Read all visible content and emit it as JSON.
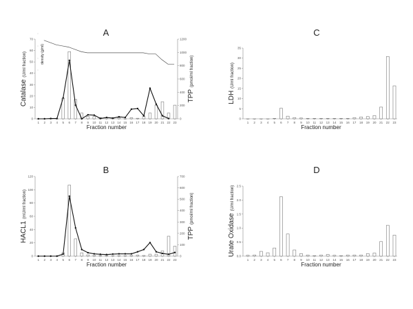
{
  "chart_data": [
    {
      "panel": "A",
      "type": "bar+line",
      "title": "A",
      "xlabel": "Fraction number",
      "ylabel": "Catalase",
      "ylabel_unit": "(U/ml fraction)",
      "y2label": "TPP",
      "y2label_unit": "(pmol/ml fraction)",
      "inner_label": "density (g/ml)",
      "categories": [
        "1",
        "2",
        "3",
        "4",
        "5",
        "6",
        "7",
        "8",
        "9",
        "10",
        "11",
        "12",
        "13",
        "14",
        "15",
        "16",
        "17",
        "18",
        "19",
        "20",
        "21",
        "22",
        "23"
      ],
      "ylim": [
        0,
        70
      ],
      "yticks": [
        0,
        10,
        20,
        30,
        40,
        50,
        60,
        70
      ],
      "y2lim": [
        0,
        1200
      ],
      "y2ticks": [
        0,
        200,
        400,
        600,
        800,
        1000,
        1200
      ],
      "series": [
        {
          "name": "Catalase",
          "kind": "bar",
          "axis": "left",
          "values": [
            0,
            0,
            0,
            0,
            18,
            59,
            17,
            5,
            2,
            2,
            1,
            1,
            1,
            1,
            0,
            1,
            0.5,
            2,
            5,
            12,
            15,
            5,
            12
          ]
        },
        {
          "name": "TPP",
          "kind": "line-marker",
          "axis": "right",
          "values": [
            0,
            0,
            5,
            5,
            315,
            880,
            205,
            0,
            60,
            55,
            5,
            20,
            10,
            30,
            20,
            145,
            155,
            45,
            460,
            220,
            45,
            5,
            null
          ]
        },
        {
          "name": "density",
          "kind": "line",
          "axis": "left",
          "values": [
            69,
            67,
            65,
            64,
            63,
            61,
            59,
            58,
            58,
            58,
            58,
            58,
            58,
            58,
            58,
            58,
            58,
            57,
            57,
            52,
            48,
            48,
            null
          ]
        }
      ]
    },
    {
      "panel": "B",
      "type": "bar+line",
      "title": "B",
      "xlabel": "Fraction number",
      "ylabel": "HACL1",
      "ylabel_unit": "(mU/ml fraction)",
      "y2label": "TPP",
      "y2label_unit": "(pmol/ml fraction)",
      "categories": [
        "1",
        "2",
        "3",
        "4",
        "5",
        "6",
        "7",
        "8",
        "9",
        "10",
        "11",
        "12",
        "13",
        "14",
        "15",
        "16",
        "17",
        "18",
        "19",
        "20",
        "21",
        "22",
        "23"
      ],
      "ylim": [
        0,
        120
      ],
      "yticks": [
        0,
        20,
        40,
        60,
        80,
        100,
        120
      ],
      "y2lim": [
        0,
        700
      ],
      "y2ticks": [
        0,
        100,
        200,
        300,
        400,
        500,
        600,
        700
      ],
      "series": [
        {
          "name": "HACL1",
          "kind": "bar",
          "axis": "left",
          "values": [
            0,
            0,
            0,
            0,
            5,
            107,
            26,
            5,
            2,
            1,
            1,
            1,
            0.5,
            0.5,
            0.5,
            1,
            1.5,
            1,
            3,
            3,
            8,
            30,
            15
          ]
        },
        {
          "name": "TPP",
          "kind": "line-marker",
          "axis": "right",
          "values": [
            0,
            0,
            0,
            0,
            18,
            527,
            248,
            58,
            30,
            20,
            16,
            14,
            18,
            20,
            20,
            20,
            38,
            58,
            119,
            38,
            24,
            16,
            32
          ]
        }
      ]
    },
    {
      "panel": "C",
      "type": "bar",
      "title": "C",
      "xlabel": "Fraction number",
      "ylabel": "LDH",
      "ylabel_unit": "(U/ml fraction)",
      "categories": [
        "1",
        "2",
        "3",
        "4",
        "5",
        "6",
        "7",
        "8",
        "9",
        "10",
        "11",
        "12",
        "13",
        "14",
        "15",
        "16",
        "17",
        "18",
        "19",
        "20",
        "21",
        "22",
        "23"
      ],
      "ylim": [
        0,
        35
      ],
      "yticks": [
        0,
        5,
        10,
        15,
        20,
        25,
        30,
        35
      ],
      "series": [
        {
          "name": "LDH",
          "kind": "bar",
          "axis": "left",
          "values": [
            0,
            0,
            0,
            0,
            0.2,
            5.2,
            1.3,
            0.6,
            0.4,
            0.2,
            0.2,
            0.2,
            0.2,
            0.2,
            0.2,
            0.2,
            0.6,
            0.9,
            1.1,
            1.6,
            5.8,
            30.8,
            16.3
          ]
        }
      ]
    },
    {
      "panel": "D",
      "type": "bar",
      "title": "D",
      "xlabel": "Fraction number",
      "ylabel": "Urate Oxidase",
      "ylabel_unit": "(U/ml fraction)",
      "categories": [
        "1",
        "2",
        "3",
        "4",
        "5",
        "6",
        "7",
        "8",
        "9",
        "10",
        "11",
        "12",
        "13",
        "14",
        "15",
        "16",
        "17",
        "18",
        "19",
        "20",
        "21",
        "22",
        "23"
      ],
      "ylim": [
        0,
        2.5
      ],
      "yticks": [
        "0.0",
        "0.5",
        "1.0",
        "1.5",
        "2.0",
        "2.5"
      ],
      "series": [
        {
          "name": "Urate Oxidase",
          "kind": "bar",
          "axis": "left",
          "values": [
            0.03,
            0.04,
            0.17,
            0.12,
            0.29,
            2.12,
            0.79,
            0.22,
            0.09,
            0.04,
            0.02,
            0.04,
            0.06,
            0.03,
            0.02,
            0.04,
            0.04,
            0.04,
            0.09,
            0.11,
            0.52,
            1.1,
            0.75
          ]
        }
      ]
    }
  ]
}
